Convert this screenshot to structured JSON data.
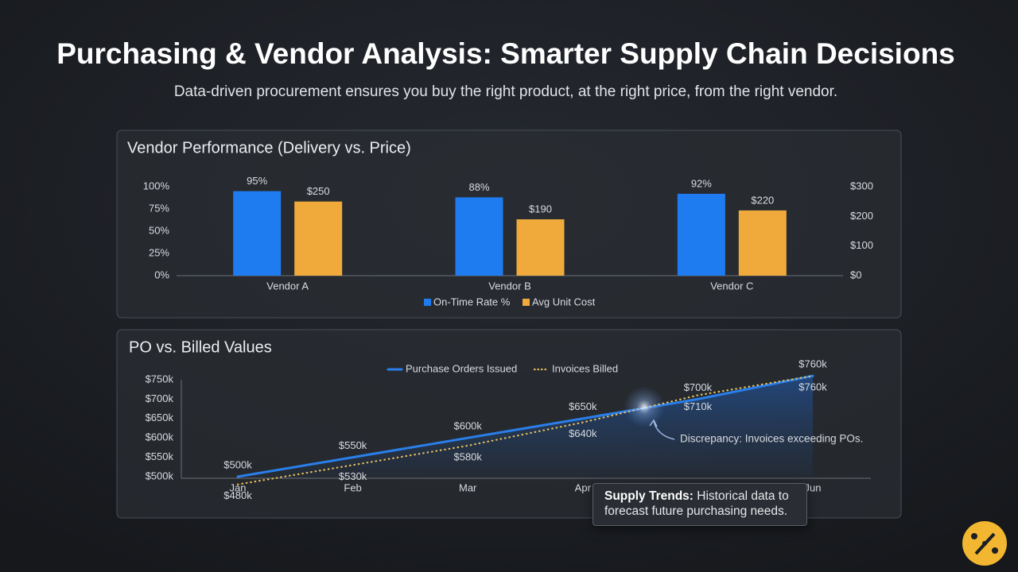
{
  "header": {
    "title": "Purchasing & Vendor Analysis: Smarter Supply Chain Decisions",
    "subtitle": "Data-driven procurement ensures you buy the right product, at the right price, from the right vendor."
  },
  "chart_data": [
    {
      "type": "bar",
      "title": "Vendor Performance (Delivery vs. Price)",
      "categories": [
        "Vendor A",
        "Vendor B",
        "Vendor C"
      ],
      "series": [
        {
          "name": "On-Time Rate %",
          "color": "#1f7cf0",
          "values": [
            95,
            88,
            92
          ],
          "value_labels": [
            "95%",
            "88%",
            "92%"
          ]
        },
        {
          "name": "Avg Unit Cost",
          "color": "#f0aa3c",
          "values": [
            250,
            190,
            220
          ],
          "value_labels": [
            "$250",
            "$190",
            "$220"
          ],
          "axis": "y2"
        }
      ],
      "ylim": [
        0,
        100
      ],
      "yticks": [
        {
          "value": 0,
          "label": "0%"
        },
        {
          "value": 25,
          "label": "25%"
        },
        {
          "value": 50,
          "label": "50%"
        },
        {
          "value": 75,
          "label": "75%"
        },
        {
          "value": 100,
          "label": "100%"
        }
      ],
      "y2lim": [
        0,
        300
      ],
      "y2ticks": [
        {
          "value": 0,
          "label": "$0"
        },
        {
          "value": 100,
          "label": "$100"
        },
        {
          "value": 200,
          "label": "$200"
        },
        {
          "value": 300,
          "label": "$300"
        }
      ],
      "legend": "bottom"
    },
    {
      "type": "line",
      "title": "PO vs. Billed Values",
      "categories": [
        "Jan",
        "Feb",
        "Mar",
        "Apr",
        null,
        "Jun"
      ],
      "series": [
        {
          "name": "Purchase Orders Issued",
          "color": "#2a7fea",
          "style": "solid",
          "area": true,
          "values": [
            500000,
            550000,
            600000,
            650000,
            700000,
            760000
          ],
          "value_labels": [
            "$500k",
            "$550k",
            "$600k",
            "$650k",
            "$700k",
            "$760k"
          ]
        },
        {
          "name": "Invoices Billed",
          "color": "#e8c25c",
          "style": "dotted",
          "values": [
            480000,
            530000,
            580000,
            640000,
            710000,
            760000
          ],
          "value_labels": [
            "$480k",
            "$530k",
            "$580k",
            "$640k",
            "$710k",
            "$760k"
          ]
        }
      ],
      "ylim": [
        500000,
        750000
      ],
      "yticks": [
        {
          "value": 500000,
          "label": "$500k"
        },
        {
          "value": 550000,
          "label": "$550k"
        },
        {
          "value": 600000,
          "label": "$600k"
        },
        {
          "value": 650000,
          "label": "$650k"
        },
        {
          "value": 700000,
          "label": "$700k"
        },
        {
          "value": 750000,
          "label": "$750k"
        }
      ],
      "legend": "top",
      "annotation": "Discrepancy: Invoices exceeding POs.",
      "callout": {
        "title": "Supply Trends:",
        "text": "Historical data to forecast future purchasing needs."
      }
    }
  ]
}
